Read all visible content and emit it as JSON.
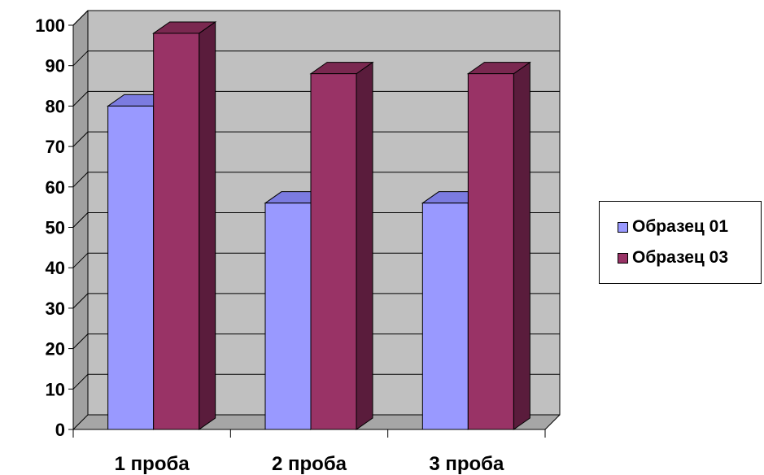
{
  "chart_data": {
    "type": "bar",
    "categories": [
      "1 проба",
      "2 проба",
      "3 проба"
    ],
    "series": [
      {
        "name": "Образец 01",
        "values": [
          80,
          56,
          56
        ]
      },
      {
        "name": "Образец 03",
        "values": [
          98,
          88,
          88
        ]
      }
    ],
    "ylim": [
      0,
      100
    ],
    "yticks": [
      "0",
      "10",
      "20",
      "30",
      "40",
      "50",
      "60",
      "70",
      "80",
      "90",
      "100"
    ],
    "grid": true,
    "legend_position": "right",
    "style": "3d-clustered-column"
  },
  "colors": {
    "series": [
      {
        "front": "#9999ff",
        "top": "#7b7be0",
        "side": "#5050a8"
      },
      {
        "front": "#993366",
        "top": "#7a2850",
        "side": "#5a1c3c"
      }
    ],
    "wall": "#c0c0c0",
    "wall_side": "#a0a0a0",
    "floor": "#a6a6a6",
    "grid": "#000000"
  },
  "legend": {
    "items": [
      {
        "label": "Образец 01",
        "color": "#9999ff"
      },
      {
        "label": "Образец 03",
        "color": "#993366"
      }
    ]
  }
}
